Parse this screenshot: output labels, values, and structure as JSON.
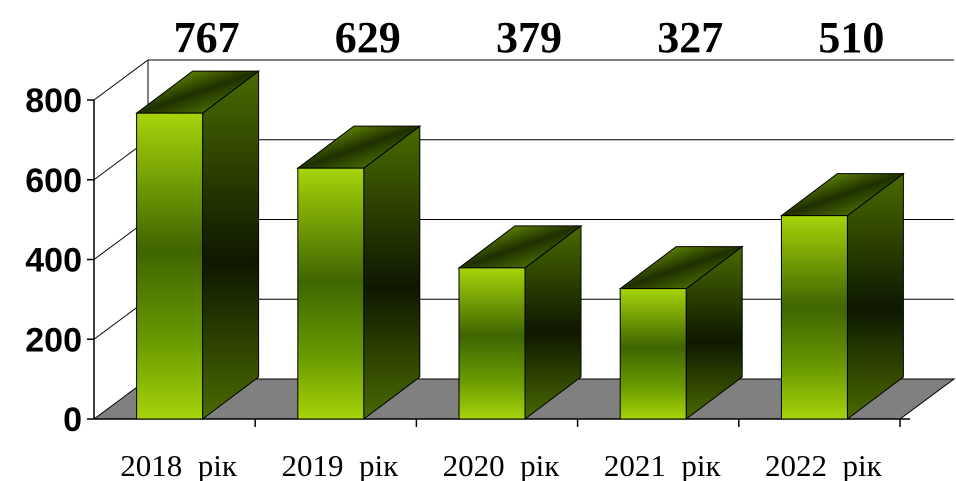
{
  "chart_data": {
    "type": "bar",
    "style": "3d-column",
    "categories": [
      "2018  рік",
      "2019  рік",
      "2020  рік",
      "2021  рік",
      "2022  рік"
    ],
    "values": [
      767,
      629,
      379,
      327,
      510
    ],
    "data_labels": [
      "767",
      "629",
      "379",
      "327",
      "510"
    ],
    "title": "",
    "xlabel": "",
    "ylabel": "",
    "ylim": [
      0,
      800
    ],
    "yticks": [
      0,
      200,
      400,
      600,
      800
    ],
    "ytick_labels": [
      "0",
      "200",
      "400",
      "600",
      "800"
    ],
    "grid": true,
    "legend": "none",
    "colors": {
      "bar_front_light": "#a6d40a",
      "bar_front_dark": "#2e4a00",
      "bar_side": "#3a5200",
      "bar_top": "#5a7e00",
      "floor": "#808080",
      "grid": "#000000"
    }
  }
}
